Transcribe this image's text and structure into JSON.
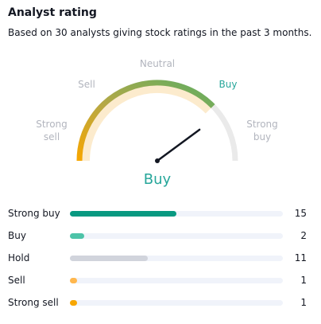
{
  "header": {
    "title": "Analyst rating",
    "subtitle": "Based on 30 analysts giving stock ratings in the past 3 months."
  },
  "gauge": {
    "labels": {
      "strong_sell_1": "Strong",
      "strong_sell_2": "sell",
      "sell": "Sell",
      "neutral": "Neutral",
      "buy": "Buy",
      "strong_buy_1": "Strong",
      "strong_buy_2": "buy"
    },
    "verdict": "Buy",
    "needle_fraction": 0.82,
    "colors": {
      "active": "#26a69a",
      "inactive": "#b2b5be",
      "track": "#eaeaea"
    }
  },
  "breakdown": {
    "total": 30,
    "rows": [
      {
        "label": "Strong buy",
        "count": "15",
        "value": 15,
        "color": "#089981"
      },
      {
        "label": "Buy",
        "count": "2",
        "value": 2,
        "color": "#4dc3a8"
      },
      {
        "label": "Hold",
        "count": "11",
        "value": 11,
        "color": "#d1d4dc"
      },
      {
        "label": "Sell",
        "count": "1",
        "value": 1,
        "color": "#ffb74d"
      },
      {
        "label": "Strong sell",
        "count": "1",
        "value": 1,
        "color": "#f7a600"
      }
    ]
  }
}
